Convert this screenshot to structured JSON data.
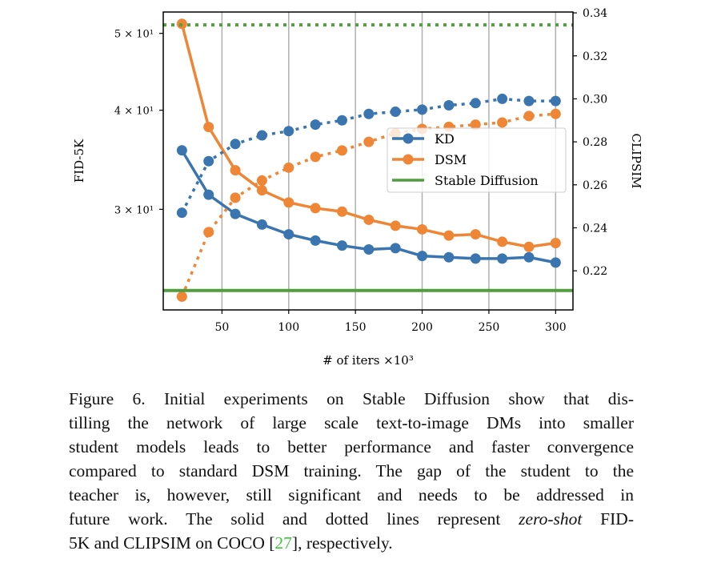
{
  "chart_data": {
    "type": "line",
    "x": [
      20,
      40,
      60,
      80,
      100,
      120,
      140,
      160,
      180,
      200,
      220,
      240,
      260,
      280,
      300
    ],
    "xlabel": "# of iters ×10³",
    "xticks": [
      50,
      100,
      150,
      200,
      250,
      300
    ],
    "xlim": [
      6,
      313
    ],
    "left_axis": {
      "label": "FID-5K",
      "scale": "log",
      "ylim": [
        22.4,
        53.2
      ],
      "ticks": [
        {
          "value": 50,
          "label": "5 × 10¹"
        },
        {
          "value": 40,
          "label": "4 × 10¹"
        },
        {
          "value": 30,
          "label": "3 × 10¹"
        }
      ]
    },
    "right_axis": {
      "label": "CLIPSIM",
      "scale": "linear",
      "ylim": [
        0.2018,
        0.3404
      ],
      "ticks": [
        0.22,
        0.24,
        0.26,
        0.28,
        0.3,
        0.32,
        0.34
      ]
    },
    "grid": "vertical",
    "legend": {
      "placement": "center-right",
      "entries": [
        "KD",
        "DSM",
        "Stable Diffusion"
      ]
    },
    "series": [
      {
        "name": "KD",
        "metric": "FID-5K",
        "style": "solid",
        "color": "#3b75af",
        "values": [
          35.6,
          31.3,
          29.6,
          28.7,
          27.9,
          27.4,
          27.0,
          26.7,
          26.8,
          26.2,
          26.1,
          26.0,
          26.0,
          26.1,
          25.7
        ]
      },
      {
        "name": "DSM",
        "metric": "FID-5K",
        "style": "solid",
        "color": "#ef8636",
        "values": [
          51.4,
          38.1,
          33.6,
          31.7,
          30.6,
          30.1,
          29.8,
          29.1,
          28.6,
          28.3,
          27.8,
          27.9,
          27.3,
          26.9,
          27.2
        ]
      },
      {
        "name": "KD",
        "metric": "CLIPSIM",
        "style": "dotted",
        "color": "#3b75af",
        "values": [
          0.247,
          0.271,
          0.279,
          0.283,
          0.285,
          0.288,
          0.29,
          0.293,
          0.294,
          0.295,
          0.297,
          0.298,
          0.3,
          0.299,
          0.299
        ]
      },
      {
        "name": "DSM",
        "metric": "CLIPSIM",
        "style": "dotted",
        "color": "#ef8636",
        "values": [
          0.208,
          0.238,
          0.254,
          0.262,
          0.268,
          0.273,
          0.276,
          0.28,
          0.284,
          0.286,
          0.287,
          0.288,
          0.289,
          0.292,
          0.293
        ]
      },
      {
        "name": "Stable Diffusion",
        "metric": "FID-5K",
        "style": "solid",
        "color": "#519e3e",
        "constant": 23.7
      },
      {
        "name": "Stable Diffusion",
        "metric": "CLIPSIM",
        "style": "dotted",
        "color": "#519e3e",
        "constant": 0.3344
      }
    ]
  },
  "caption": {
    "lines": [
      "Figure 6. Initial experiments on Stable Diffusion show that dis-",
      "tilling the network of large scale text-to-image DMs into smaller",
      "student models leads to better performance and faster convergence",
      "compared to standard DSM training. The gap of the student to the",
      "teacher is, however, still significant and needs to be addressed in"
    ],
    "line6_a": "future work. The solid and dotted lines represent ",
    "line6_italic": "zero-shot",
    "line6_b": " FID-",
    "line7_a": "5K and CLIPSIM on COCO [",
    "line7_ref": "27",
    "line7_b": "], respectively."
  }
}
